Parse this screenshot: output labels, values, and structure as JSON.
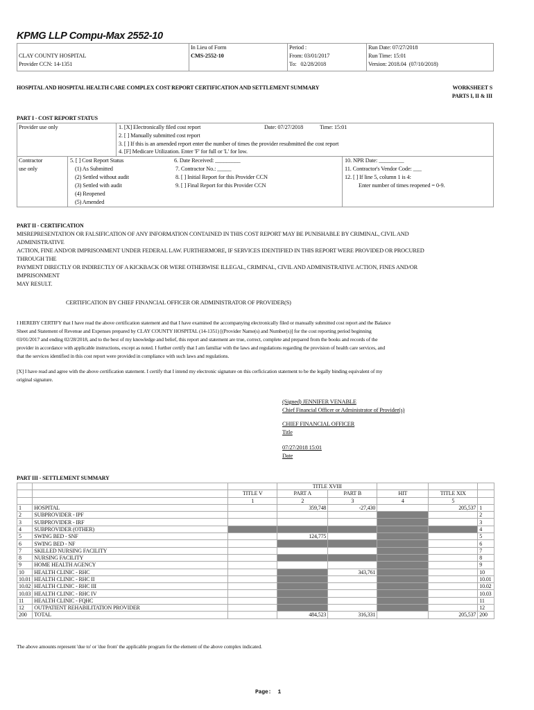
{
  "header": {
    "title": "KPMG LLP Compu-Max 2552-10",
    "hospital": "CLAY COUNTY HOSPITAL",
    "provider_ccn": "Provider CCN: 14-1351",
    "in_lieu_label": "In Lieu of Form",
    "form": "CMS-2552-10",
    "period_label": "Period :",
    "from": "From: 03/01/2017",
    "to": "To:   02/28/2018",
    "run_date": "Run Date: 07/27/2018",
    "run_time": "Run Time: 15:01",
    "version": "Version: 2018.04  (07/10/2018)"
  },
  "doc_title": "HOSPITAL AND HOSPITAL HEALTH CARE COMPLEX COST REPORT CERTIFICATION AND SETTLEMENT SUMMARY",
  "worksheet": {
    "line1": "WORKSHEET S",
    "line2": "PARTS I, II & III"
  },
  "part1": {
    "heading": "PART I - COST REPORT STATUS",
    "provider_label": "Provider use only",
    "items": [
      "1. [X] Electronically filed cost report",
      "2. [ ] Manually submitted cost report",
      "3. [ ] If this is an amended report enter the number of times the provider resubmitted the cost report",
      "4. [F] Medicare Utilization.  Enter 'F' for full or 'L' for low."
    ],
    "date": "Date: 07/27/2018",
    "time": "Time: 15:01",
    "contractor_label1": "Contractor",
    "contractor_label2": "use only",
    "status_col": [
      "5. [ ] Cost Report Status",
      "(1) As Submitted",
      "(2) Settled without audit",
      "(3) Settled with audit",
      "(4) Reopened",
      "(5) Amended"
    ],
    "mid_col": [
      "6. Date Received: _________",
      "7. Contractor No.: _____",
      "8. [ ] Initial Report for this Provider CCN",
      "9. [ ] Final Report for this Provider CCN"
    ],
    "right_col": [
      "10. NPR Date: _________",
      "11. Contractor's Vendor Code: ___",
      "12. [ ] If line 5, column 1 is 4:",
      "Enter number of times reopened = 0-9."
    ]
  },
  "part2": {
    "heading": "PART II - CERTIFICATION",
    "warning": [
      "MISREPRESENTATION OR FALSIFICATION OF ANY INFORMATION CONTAINED IN THIS COST REPORT MAY BE PUNISHABLE BY CRIMINAL, CIVIL AND",
      "ADMINISTRATIVE",
      "ACTION, FINE AND/OR IMPRISONMENT UNDER FEDERAL LAW. FURTHERMORE, IF SERVICES IDENTIFIED IN THIS REPORT WERE PROVIDED OR PROCURED",
      "THROUGH THE",
      "PAYMENT DIRECTLY OR INDIRECTLY OF A KICKBACK OR WERE OTHERWISE ILLEGAL, CRIMINAL, CIVIL AND ADMINISTRATIVE ACTION, FINES AND/OR",
      "IMPRISONMENT",
      "MAY RESULT."
    ],
    "cert_heading": "CERTIFICATION BY CHIEF FINANCIAL OFFICER OR ADMINISTRATOR OF PROVIDER(S)",
    "certify": [
      "I HEREBY CERTIFY that I have read the above certification statement and that I have examined the accompanying electronically filed or manually submitted cost report and the Balance",
      "Sheet and Statement of Revenue and Expenses prepared by CLAY COUNTY HOSPITAL  (14-1351) [(Provider Name(s) and Number(s)] for the cost reporting period beginning",
      "03/01/2017 and ending 02/28/2018, and to the best of my knowledge and belief, this report and statement are true, correct, complete and prepared from the books and records of the",
      "provider in accordance with applicable instructions, except as noted.  I further certify that I am familiar with the laws and regulations regarding the provision of health care services, and",
      "that the services identified in this cost report were provided in compliance with such laws and regulations."
    ],
    "agree": [
      "[X]  I have read and agree with the above certification statement.  I certify that I intend my electronic signature on this cerficication statement to be the legally binding equivalent of my",
      "original signature."
    ],
    "signed": "(Signed)  JENNIFER VENABLE",
    "signer_role": "Chief Financial Officer or Administrator of Provider(s)",
    "title_value": "CHIEF FINANCIAL OFFICER",
    "title_label": "Title",
    "date_value": "07/27/2018 15:01",
    "date_label": "Date"
  },
  "part3": {
    "heading": "PART III - SETTLEMENT SUMMARY",
    "group_header": "TITLE XVIII",
    "columns": [
      "TITLE V",
      "PART A",
      "PART B",
      "HIT",
      "TITLE XIX"
    ],
    "column_numbers": [
      "1",
      "2",
      "3",
      "4",
      "5"
    ],
    "rows": [
      {
        "line": "1",
        "desc": "HOSPITAL",
        "values": [
          "",
          "359,748",
          "-27,430",
          "",
          "205,537"
        ],
        "shaded": []
      },
      {
        "line": "2",
        "desc": "SUBPROVIDER - IPF",
        "values": [
          "",
          "",
          "",
          "",
          ""
        ],
        "shaded": [
          3
        ]
      },
      {
        "line": "3",
        "desc": "SUBPROVIDER - IRF",
        "values": [
          "",
          "",
          "",
          "",
          ""
        ],
        "shaded": [
          3
        ]
      },
      {
        "line": "4",
        "desc": "SUBPROVIDER (OTHER)",
        "values": [
          "",
          "",
          "",
          "",
          ""
        ],
        "shaded": [
          0,
          1,
          2,
          3,
          4
        ]
      },
      {
        "line": "5",
        "desc": "SWING BED - SNF",
        "values": [
          "",
          "124,775",
          "",
          "",
          ""
        ],
        "shaded": [
          3
        ]
      },
      {
        "line": "6",
        "desc": "SWING BED - NF",
        "values": [
          "",
          "",
          "",
          "",
          ""
        ],
        "shaded": [
          1,
          2,
          3
        ]
      },
      {
        "line": "7",
        "desc": "SKILLED NURSING FACILITY",
        "values": [
          "",
          "",
          "",
          "",
          ""
        ],
        "shaded": [
          3
        ]
      },
      {
        "line": "8",
        "desc": "NURSING FACILITY",
        "values": [
          "",
          "",
          "",
          "",
          ""
        ],
        "shaded": [
          1,
          2,
          3
        ]
      },
      {
        "line": "9",
        "desc": "HOME HEALTH AGENCY",
        "values": [
          "",
          "",
          "",
          "",
          ""
        ],
        "shaded": [
          3
        ]
      },
      {
        "line": "10",
        "desc": "HEALTH CLINIC - RHC",
        "values": [
          "",
          "",
          "343,761",
          "",
          ""
        ],
        "shaded": [
          1,
          3
        ]
      },
      {
        "line": "10.01",
        "desc": "HEALTH CLINIC - RHC II",
        "values": [
          "",
          "",
          "",
          "",
          ""
        ],
        "shaded": [
          1,
          3
        ]
      },
      {
        "line": "10.02",
        "desc": "HEALTH CLINIC - RHC III",
        "values": [
          "",
          "",
          "",
          "",
          ""
        ],
        "shaded": [
          1,
          3
        ]
      },
      {
        "line": "10.03",
        "desc": "HEALTH CLINIC - RHC IV",
        "values": [
          "",
          "",
          "",
          "",
          ""
        ],
        "shaded": [
          1,
          3
        ]
      },
      {
        "line": "11",
        "desc": "HEALTH CLINIC - FQHC",
        "values": [
          "",
          "",
          "",
          "",
          ""
        ],
        "shaded": [
          1,
          3
        ]
      },
      {
        "line": "12",
        "desc": "OUTPATIENT REHABILITATION PROVIDER",
        "values": [
          "",
          "",
          "",
          "",
          ""
        ],
        "shaded": [
          1,
          3
        ]
      },
      {
        "line": "200",
        "desc": "TOTAL",
        "values": [
          "",
          "484,523",
          "316,331",
          "",
          "205,537"
        ],
        "shaded": []
      }
    ],
    "shade_color": "#808080",
    "footnote": "The above amounts represent 'due to' or 'due from' the applicable program for the element of the above complex indicated."
  },
  "footer": {
    "page": "Page:  1"
  }
}
